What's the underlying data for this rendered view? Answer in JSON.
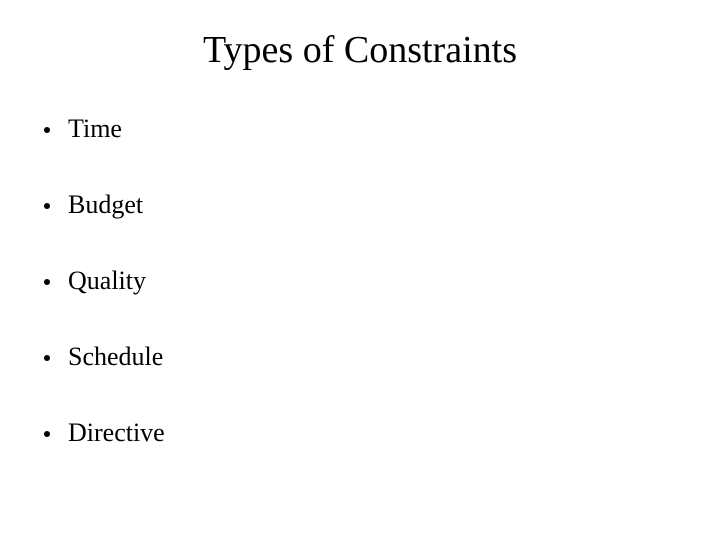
{
  "slide": {
    "title": "Types of Constraints",
    "bullets": [
      "Time",
      "Budget",
      "Quality",
      "Schedule",
      "Directive"
    ],
    "style": {
      "background_color": "#ffffff",
      "text_color": "#000000",
      "title_fontsize": 38,
      "bullet_fontsize": 26,
      "font_family": "Times New Roman",
      "bullet_marker_color": "#000000",
      "bullet_marker_size": 6
    }
  }
}
